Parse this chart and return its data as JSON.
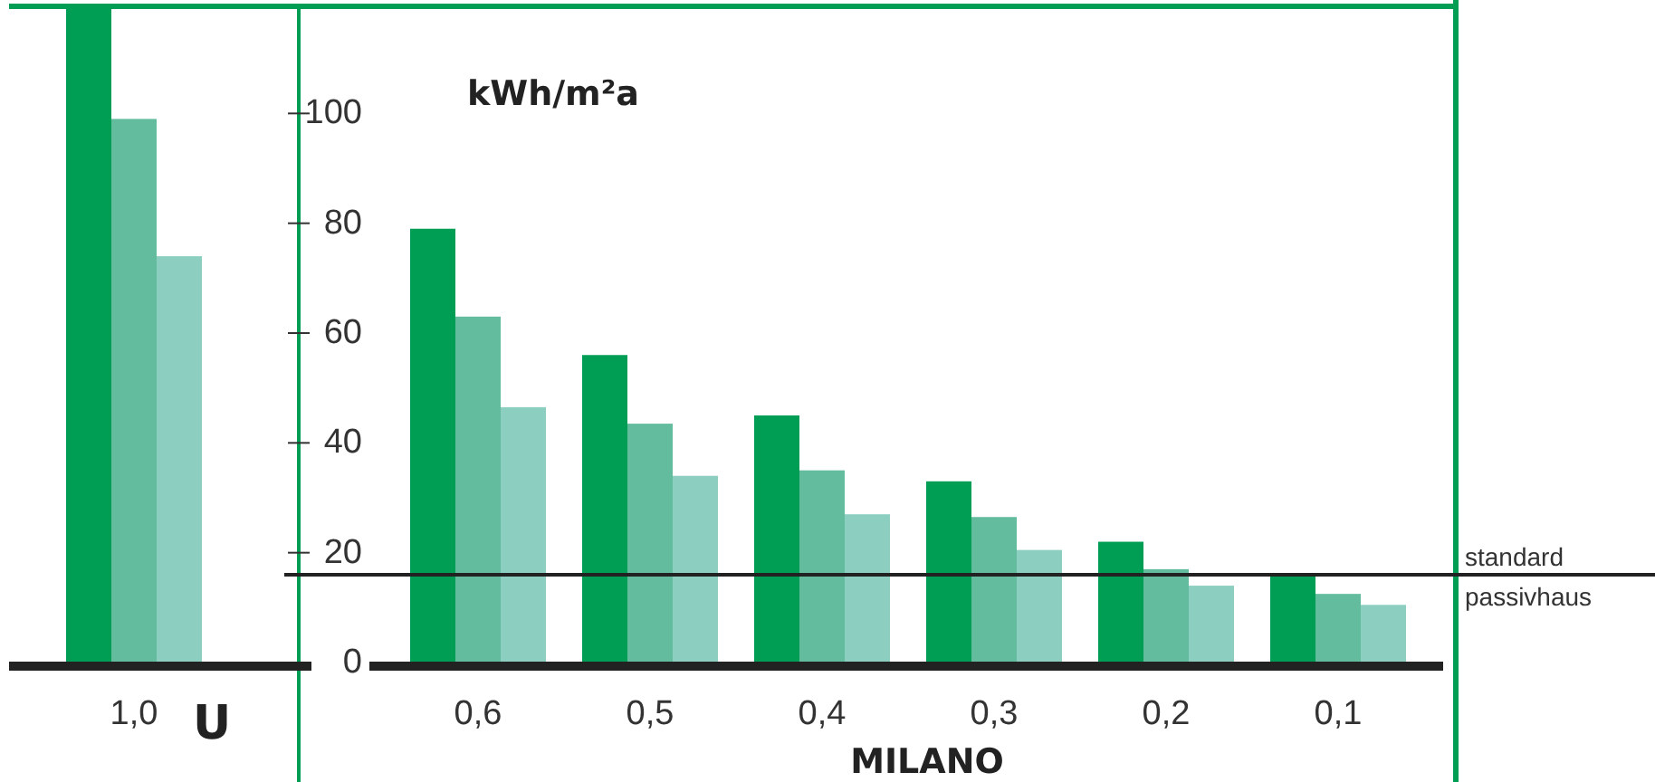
{
  "chart_data": {
    "type": "bar",
    "ylabel": "kWh/m²a",
    "xlabel": "U",
    "annotations": [
      "MILANO"
    ],
    "categories": [
      "1,0",
      null,
      "0,6",
      "0,5",
      "0,4",
      "0,3",
      "0,2",
      "0,1"
    ],
    "series": [
      {
        "color": "#009e55",
        "values": [
          120,
          null,
          79,
          56,
          45,
          33,
          22,
          16
        ]
      },
      {
        "color": "#62bc9d",
        "values": [
          99,
          null,
          63,
          43.5,
          35,
          26.5,
          17,
          12.5
        ]
      },
      {
        "color": "#8ccfc1",
        "values": [
          74,
          null,
          46.5,
          34,
          27,
          20.5,
          14,
          10.5
        ]
      }
    ],
    "ylim": [
      0,
      120
    ],
    "yticks": [
      0,
      20,
      40,
      60,
      80,
      100
    ],
    "ref_lines": [
      {
        "axis": "y",
        "value": 16,
        "label": "standard passivhaus",
        "color": "#222222"
      }
    ],
    "grid": false
  }
}
